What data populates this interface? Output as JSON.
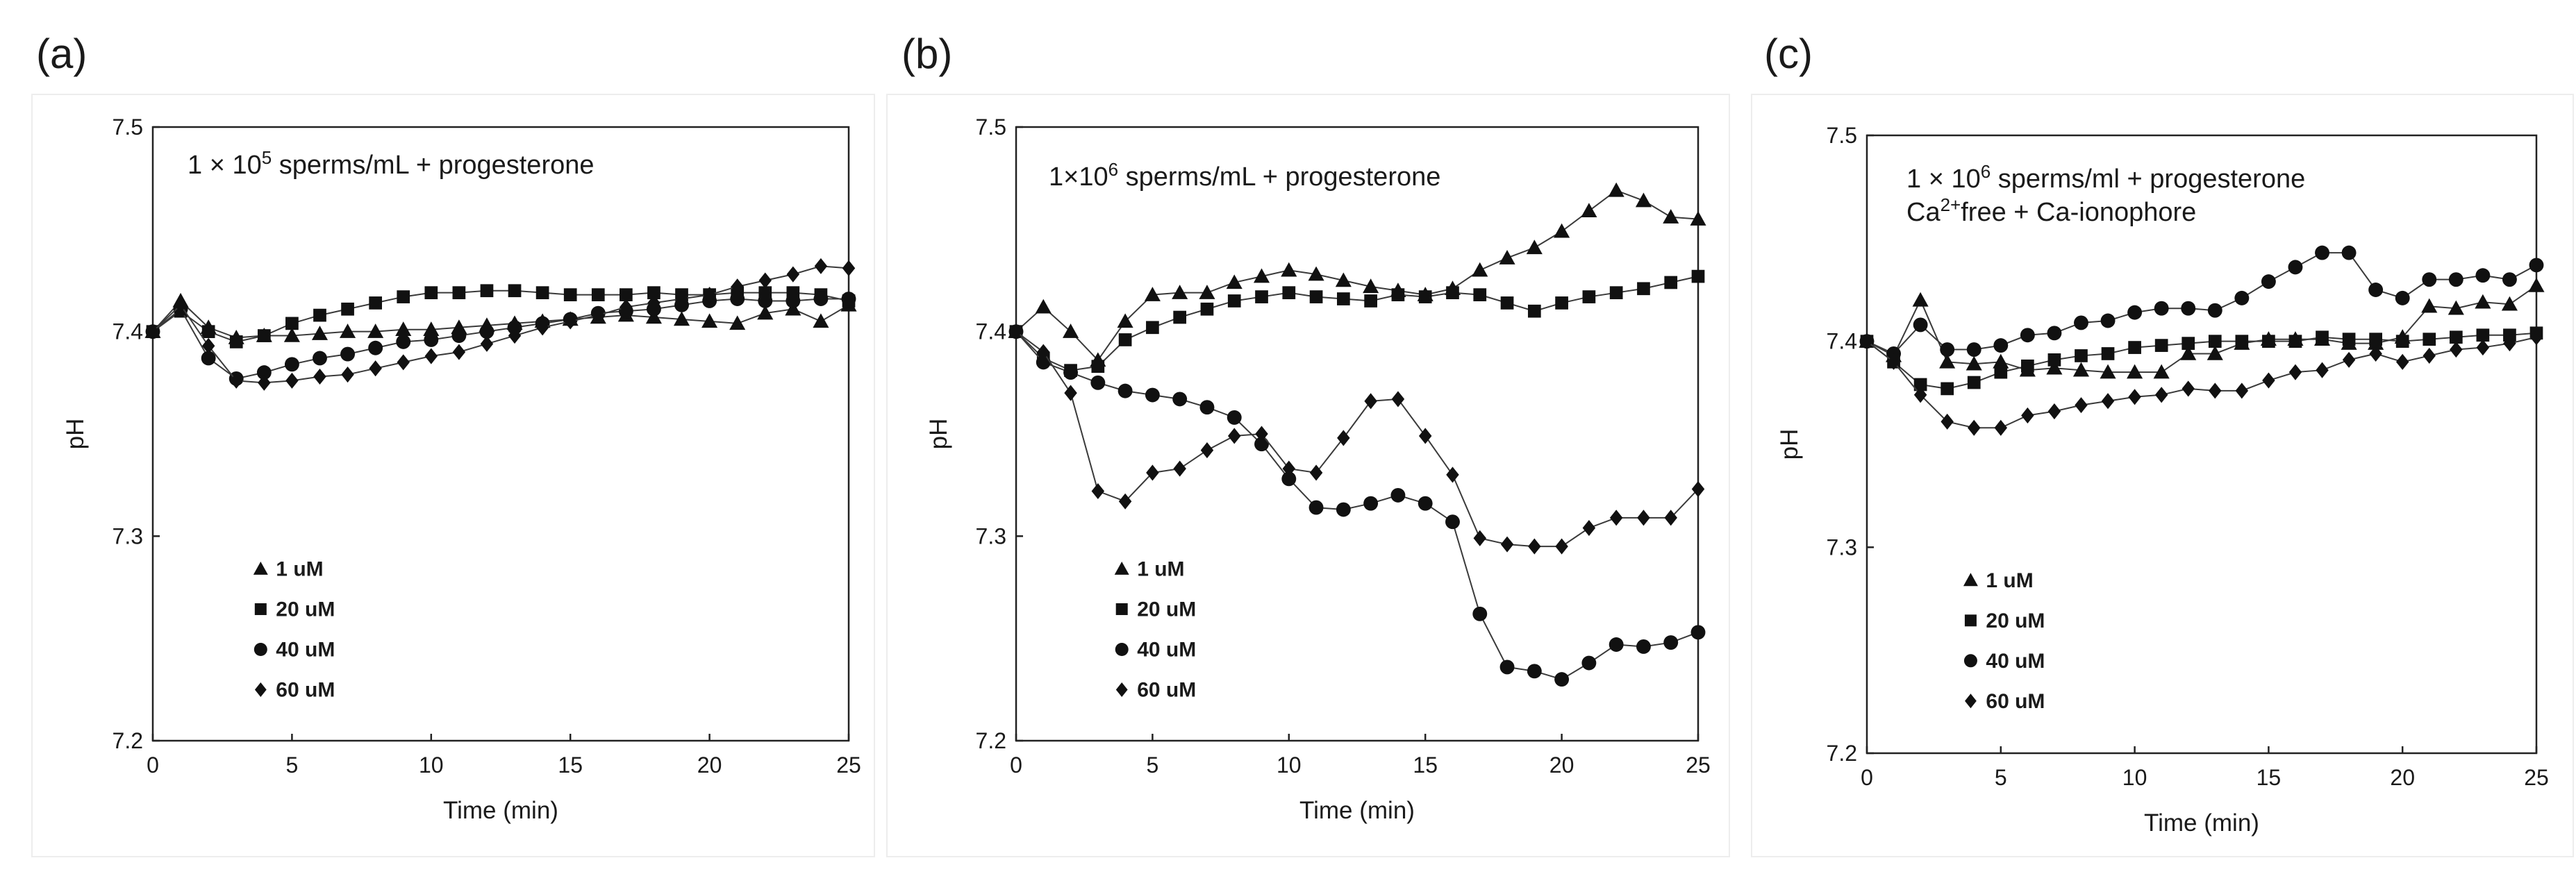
{
  "figure": {
    "panel_count": 3
  },
  "chart_data": [
    {
      "type": "line",
      "panel_label": "(a)",
      "annotation_lines": [
        {
          "pre": "1 × 10",
          "sup": "5",
          "post": " sperms/mL + progesterone"
        }
      ],
      "xlabel": "Time (min)",
      "ylabel": "pH",
      "xlim": [
        0,
        25
      ],
      "ylim": [
        7.2,
        7.5
      ],
      "xticks": [
        0,
        5,
        10,
        15,
        20,
        25
      ],
      "xtick_labels": [
        "0",
        "5",
        "10",
        "15",
        "20",
        "25"
      ],
      "yticks": [
        7.2,
        7.3,
        7.4,
        7.5
      ],
      "ytick_labels": [
        "7.2",
        "7.3",
        "7.4",
        "7.5"
      ],
      "legend_placement": "lower-left",
      "x": [
        0,
        1,
        2,
        3,
        4,
        5,
        6,
        7,
        8,
        9,
        10,
        11,
        12,
        13,
        14,
        15,
        16,
        17,
        18,
        19,
        20,
        21,
        22,
        23,
        24,
        25
      ],
      "series": [
        {
          "name": "1 uM",
          "marker": "triangle",
          "values": [
            7.4,
            7.415,
            7.402,
            7.397,
            7.398,
            7.398,
            7.399,
            7.4,
            7.4,
            7.401,
            7.401,
            7.402,
            7.403,
            7.404,
            7.405,
            7.406,
            7.407,
            7.408,
            7.407,
            7.406,
            7.405,
            7.404,
            7.409,
            7.411,
            7.405,
            7.413
          ]
        },
        {
          "name": "20 uM",
          "marker": "square",
          "values": [
            7.4,
            7.41,
            7.4,
            7.395,
            7.398,
            7.404,
            7.408,
            7.411,
            7.414,
            7.417,
            7.419,
            7.419,
            7.42,
            7.42,
            7.419,
            7.418,
            7.418,
            7.418,
            7.419,
            7.418,
            7.418,
            7.419,
            7.419,
            7.419,
            7.418,
            7.415
          ]
        },
        {
          "name": "40 uM",
          "marker": "circle",
          "values": [
            7.4,
            7.411,
            7.387,
            7.377,
            7.38,
            7.384,
            7.387,
            7.389,
            7.392,
            7.395,
            7.396,
            7.398,
            7.4,
            7.402,
            7.404,
            7.406,
            7.409,
            7.41,
            7.411,
            7.413,
            7.415,
            7.416,
            7.415,
            7.415,
            7.416,
            7.416
          ]
        },
        {
          "name": "60 uM",
          "marker": "diamond",
          "values": [
            7.4,
            7.413,
            7.393,
            7.376,
            7.375,
            7.376,
            7.378,
            7.379,
            7.382,
            7.385,
            7.388,
            7.39,
            7.394,
            7.398,
            7.402,
            7.405,
            7.408,
            7.412,
            7.414,
            7.416,
            7.418,
            7.422,
            7.425,
            7.428,
            7.432,
            7.431
          ]
        }
      ]
    },
    {
      "type": "line",
      "panel_label": "(b)",
      "annotation_lines": [
        {
          "pre": "1×10",
          "sup": "6",
          "post": " sperms/mL + progesterone"
        }
      ],
      "xlabel": "Time (min)",
      "ylabel": "pH",
      "xlim": [
        0,
        25
      ],
      "ylim": [
        7.2,
        7.5
      ],
      "xticks": [
        0,
        5,
        10,
        15,
        20,
        25
      ],
      "xtick_labels": [
        "0",
        "5",
        "10",
        "15",
        "20",
        "25"
      ],
      "yticks": [
        7.2,
        7.3,
        7.4,
        7.5
      ],
      "ytick_labels": [
        "7.2",
        "7.3",
        "7.4",
        "7.5"
      ],
      "legend_placement": "lower-left",
      "x": [
        0,
        1,
        2,
        3,
        4,
        5,
        6,
        7,
        8,
        9,
        10,
        11,
        12,
        13,
        14,
        15,
        16,
        17,
        18,
        19,
        20,
        21,
        22,
        23,
        24,
        25
      ],
      "series": [
        {
          "name": "1 uM",
          "marker": "triangle",
          "values": [
            7.4,
            7.412,
            7.4,
            7.386,
            7.405,
            7.418,
            7.419,
            7.419,
            7.424,
            7.427,
            7.43,
            7.428,
            7.425,
            7.422,
            7.42,
            7.418,
            7.421,
            7.43,
            7.436,
            7.441,
            7.449,
            7.459,
            7.469,
            7.464,
            7.456,
            7.455
          ]
        },
        {
          "name": "20 uM",
          "marker": "square",
          "values": [
            7.4,
            7.387,
            7.381,
            7.383,
            7.396,
            7.402,
            7.407,
            7.411,
            7.415,
            7.417,
            7.419,
            7.417,
            7.416,
            7.415,
            7.418,
            7.417,
            7.419,
            7.418,
            7.414,
            7.41,
            7.414,
            7.417,
            7.419,
            7.421,
            7.424,
            7.427
          ]
        },
        {
          "name": "40 uM",
          "marker": "circle",
          "values": [
            7.4,
            7.385,
            7.38,
            7.375,
            7.371,
            7.369,
            7.367,
            7.363,
            7.358,
            7.345,
            7.328,
            7.314,
            7.313,
            7.316,
            7.32,
            7.316,
            7.307,
            7.262,
            7.236,
            7.234,
            7.23,
            7.238,
            7.247,
            7.246,
            7.248,
            7.253
          ]
        },
        {
          "name": "60 uM",
          "marker": "diamond",
          "values": [
            7.4,
            7.39,
            7.37,
            7.322,
            7.317,
            7.331,
            7.333,
            7.342,
            7.349,
            7.35,
            7.333,
            7.331,
            7.348,
            7.366,
            7.367,
            7.349,
            7.33,
            7.299,
            7.296,
            7.295,
            7.295,
            7.304,
            7.309,
            7.309,
            7.309,
            7.323
          ]
        }
      ]
    },
    {
      "type": "line",
      "panel_label": "(c)",
      "annotation_lines": [
        {
          "pre": "1 × 10",
          "sup": "6",
          "post": " sperms/ml + progesterone"
        },
        {
          "pre": "Ca",
          "sup": "2+",
          "post": "free + Ca-ionophore"
        }
      ],
      "xlabel": "Time (min)",
      "ylabel": "pH",
      "xlim": [
        0,
        25
      ],
      "ylim": [
        7.2,
        7.5
      ],
      "xticks": [
        0,
        5,
        10,
        15,
        20,
        25
      ],
      "xtick_labels": [
        "0",
        "5",
        "10",
        "15",
        "20",
        "25"
      ],
      "yticks": [
        7.2,
        7.3,
        7.4,
        7.5
      ],
      "ytick_labels": [
        "7.2",
        "7.3",
        "7.4",
        "7.5"
      ],
      "legend_placement": "lower-left",
      "x": [
        0,
        1,
        2,
        3,
        4,
        5,
        6,
        7,
        8,
        9,
        10,
        11,
        12,
        13,
        14,
        15,
        16,
        17,
        18,
        19,
        20,
        21,
        22,
        23,
        24,
        25
      ],
      "series": [
        {
          "name": "1 uM",
          "marker": "triangle",
          "values": [
            7.4,
            7.393,
            7.42,
            7.39,
            7.389,
            7.39,
            7.386,
            7.387,
            7.386,
            7.385,
            7.385,
            7.385,
            7.394,
            7.394,
            7.399,
            7.401,
            7.401,
            7.401,
            7.399,
            7.399,
            7.402,
            7.417,
            7.416,
            7.419,
            7.418,
            7.427
          ]
        },
        {
          "name": "20 uM",
          "marker": "square",
          "values": [
            7.4,
            7.39,
            7.379,
            7.377,
            7.38,
            7.385,
            7.388,
            7.391,
            7.393,
            7.394,
            7.397,
            7.398,
            7.399,
            7.4,
            7.4,
            7.4,
            7.4,
            7.402,
            7.401,
            7.401,
            7.4,
            7.401,
            7.402,
            7.403,
            7.403,
            7.404
          ]
        },
        {
          "name": "40 uM",
          "marker": "circle",
          "values": [
            7.4,
            7.394,
            7.408,
            7.396,
            7.396,
            7.398,
            7.403,
            7.404,
            7.409,
            7.41,
            7.414,
            7.416,
            7.416,
            7.415,
            7.421,
            7.429,
            7.436,
            7.443,
            7.443,
            7.425,
            7.421,
            7.43,
            7.43,
            7.432,
            7.43,
            7.437
          ]
        },
        {
          "name": "60 uM",
          "marker": "diamond",
          "values": [
            7.4,
            7.39,
            7.374,
            7.361,
            7.358,
            7.358,
            7.364,
            7.366,
            7.369,
            7.371,
            7.373,
            7.374,
            7.377,
            7.376,
            7.376,
            7.381,
            7.385,
            7.386,
            7.391,
            7.394,
            7.39,
            7.393,
            7.396,
            7.397,
            7.399,
            7.402
          ]
        }
      ]
    }
  ]
}
